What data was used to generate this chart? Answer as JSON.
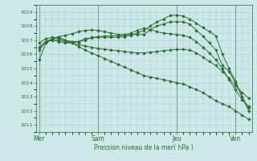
{
  "background_color": "#cce8e8",
  "grid_color": "#aacccc",
  "line_color": "#2d6e2d",
  "marker_color": "#2d6e2d",
  "xlabel": "Pression niveau de la mer( hPa )",
  "ylim": [
    1010.5,
    1019.5
  ],
  "yticks": [
    1011,
    1012,
    1013,
    1014,
    1015,
    1016,
    1017,
    1018,
    1019
  ],
  "xtick_labels": [
    "Mer",
    "Sam",
    "Jeu",
    "Ven"
  ],
  "xtick_positions": [
    0,
    9,
    21,
    30
  ],
  "total_points": 33,
  "series": [
    [
      1015.6,
      1016.8,
      1017.1,
      1017.2,
      1017.0,
      1016.8,
      1016.55,
      1016.3,
      1016.1,
      1015.9,
      1015.7,
      1015.5,
      1015.3,
      1015.1,
      1014.9,
      1014.7,
      1014.5,
      1014.4,
      1014.3,
      1014.2,
      1014.1,
      1014.0,
      1013.9,
      1013.7,
      1013.5,
      1013.3,
      1013.0,
      1012.7,
      1012.5,
      1012.3,
      1012.0,
      1011.7,
      1011.4
    ],
    [
      1016.3,
      1016.9,
      1017.1,
      1017.25,
      1017.35,
      1017.45,
      1017.6,
      1017.7,
      1017.72,
      1017.7,
      1017.6,
      1017.5,
      1017.4,
      1017.4,
      1017.4,
      1017.4,
      1017.4,
      1017.75,
      1018.0,
      1018.15,
      1018.3,
      1018.3,
      1018.3,
      1018.15,
      1017.7,
      1017.3,
      1016.8,
      1016.3,
      1015.2,
      1014.8,
      1014.0,
      1013.0,
      1012.2
    ],
    [
      1016.5,
      1016.85,
      1017.0,
      1016.9,
      1016.8,
      1016.8,
      1016.9,
      1017.1,
      1017.15,
      1017.2,
      1017.2,
      1017.2,
      1017.2,
      1017.25,
      1017.35,
      1017.5,
      1017.7,
      1018.0,
      1018.3,
      1018.5,
      1018.75,
      1018.78,
      1018.7,
      1018.5,
      1018.2,
      1017.9,
      1017.6,
      1017.3,
      1016.0,
      1015.0,
      1014.1,
      1013.0,
      1012.0
    ],
    [
      1016.8,
      1017.1,
      1017.2,
      1017.1,
      1017.0,
      1016.9,
      1016.9,
      1017.0,
      1017.2,
      1017.25,
      1017.3,
      1017.3,
      1017.3,
      1017.35,
      1017.5,
      1017.7,
      1017.85,
      1017.75,
      1017.6,
      1017.5,
      1017.45,
      1017.4,
      1017.35,
      1017.2,
      1016.9,
      1016.5,
      1016.1,
      1015.6,
      1015.0,
      1014.2,
      1013.5,
      1012.8,
      1012.3
    ],
    [
      1016.5,
      1016.9,
      1017.0,
      1017.0,
      1016.9,
      1016.8,
      1016.7,
      1016.6,
      1016.5,
      1016.4,
      1016.35,
      1016.3,
      1016.25,
      1016.2,
      1016.15,
      1016.1,
      1016.1,
      1016.15,
      1016.2,
      1016.25,
      1016.3,
      1016.35,
      1016.35,
      1016.3,
      1016.1,
      1015.8,
      1015.5,
      1015.2,
      1014.8,
      1014.3,
      1013.8,
      1013.3,
      1012.9
    ]
  ]
}
